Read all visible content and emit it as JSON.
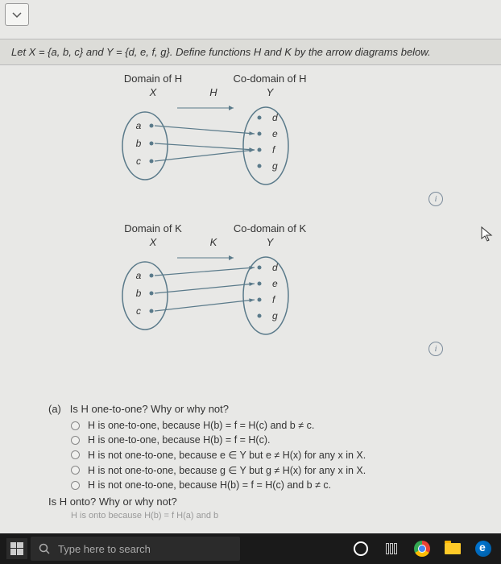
{
  "dropdown": {
    "glyph": "⌄"
  },
  "problem_text": "Let X = {a, b, c} and Y = {d, e, f, g}. Define functions H and K by the arrow diagrams below.",
  "diagram_H": {
    "domain_label": "Domain of H",
    "codomain_label": "Co-domain of H",
    "domain_set": "X",
    "func_name": "H",
    "codomain_set": "Y",
    "domain_elems": [
      "a",
      "b",
      "c"
    ],
    "codomain_elems": [
      "d",
      "e",
      "f",
      "g"
    ],
    "edges": [
      [
        0,
        1
      ],
      [
        1,
        2
      ],
      [
        2,
        2
      ]
    ],
    "oval_stroke": "#5a7a8a",
    "point_fill": "#5a7a8a",
    "text_color": "#333333",
    "arrow_hint": [
      0,
      0
    ]
  },
  "diagram_K": {
    "domain_label": "Domain of K",
    "codomain_label": "Co-domain of K",
    "domain_set": "X",
    "func_name": "K",
    "codomain_set": "Y",
    "domain_elems": [
      "a",
      "b",
      "c"
    ],
    "codomain_elems": [
      "d",
      "e",
      "f",
      "g"
    ],
    "edges": [
      [
        0,
        0
      ],
      [
        1,
        1
      ],
      [
        2,
        2
      ]
    ],
    "oval_stroke": "#5a7a8a",
    "point_fill": "#5a7a8a",
    "text_color": "#333333",
    "arrow_hint": [
      0,
      0
    ]
  },
  "info_glyph": "i",
  "question": {
    "part_label": "(a)",
    "q1": "Is H one-to-one? Why or why not?",
    "options": [
      "H is one-to-one, because H(b) = f = H(c) and b ≠ c.",
      "H is one-to-one, because H(b) = f = H(c).",
      "H is not one-to-one, because e ∈ Y but e ≠ H(x) for any x in X.",
      "H is not one-to-one, because g ∈ Y but g ≠ H(x) for any x in X.",
      "H is not one-to-one, because H(b) = f = H(c) and b ≠ c."
    ],
    "q2": "Is H onto? Why or why not?",
    "truncated": "H is onto because H(b) = f   H(a) and b"
  },
  "cursor_glyph": "↖",
  "taskbar": {
    "search_placeholder": "Type here to search"
  }
}
